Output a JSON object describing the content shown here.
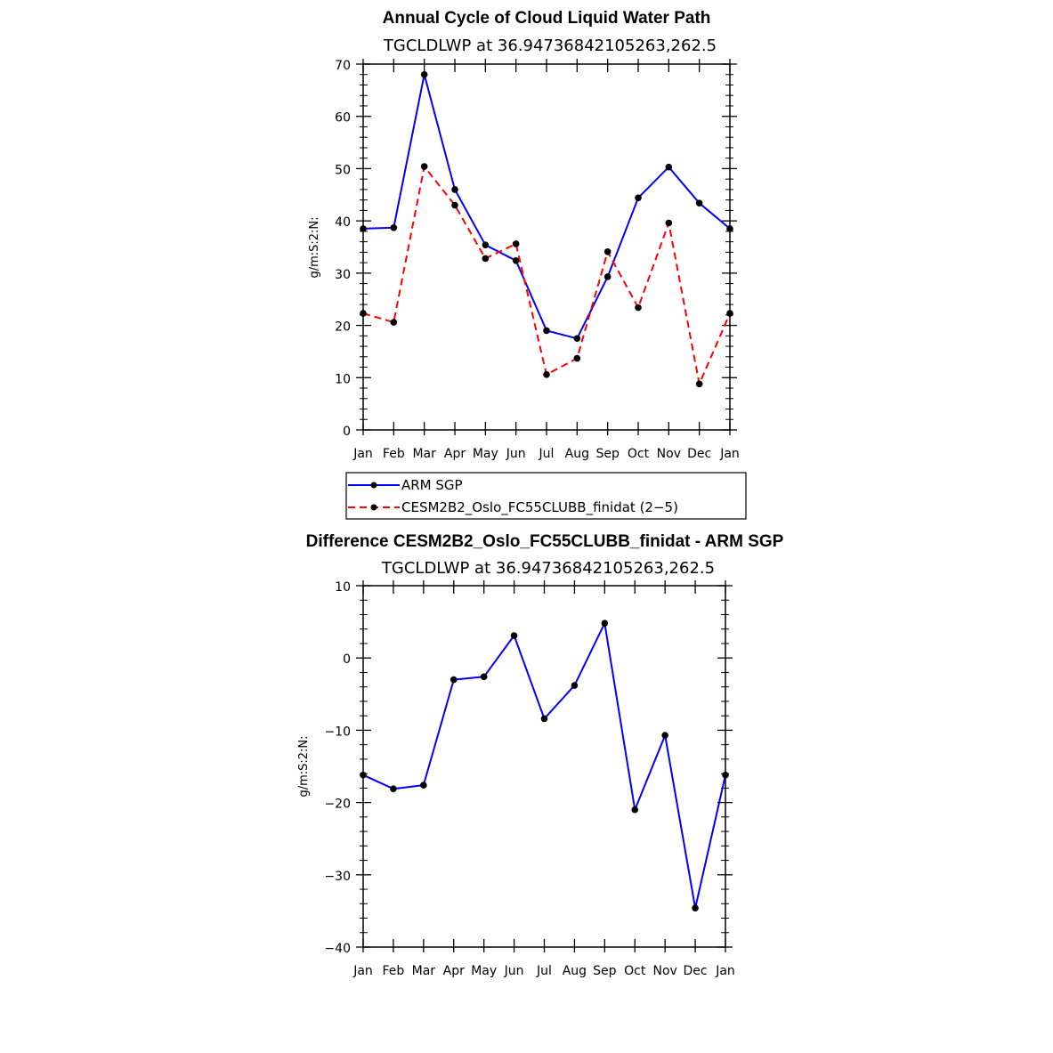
{
  "chart_data": [
    {
      "type": "line",
      "title": "Annual Cycle of Cloud Liquid Water Path",
      "subtitle": "TGCLDLWP  at  36.94736842105263,262.5",
      "ylabel": "g/m:S:2:N:",
      "categories": [
        "Jan",
        "Feb",
        "Mar",
        "Apr",
        "May",
        "Jun",
        "Jul",
        "Aug",
        "Sep",
        "Oct",
        "Nov",
        "Dec",
        "Jan"
      ],
      "ylim": [
        0,
        70
      ],
      "yticks": [
        0,
        10,
        20,
        30,
        40,
        50,
        60,
        70
      ],
      "series": [
        {
          "name": "ARM SGP",
          "color": "#0000ff",
          "dash": "solid",
          "values": [
            38.5,
            38.7,
            68.0,
            46.0,
            35.4,
            32.4,
            19.0,
            17.5,
            29.3,
            44.4,
            50.3,
            43.4,
            38.5
          ]
        },
        {
          "name": "CESM2B2_Oslo_FC55CLUBB_finidat (2−5)",
          "color": "#ff0000",
          "dash": "dashed",
          "values": [
            22.3,
            20.6,
            50.4,
            43.0,
            32.8,
            35.6,
            10.6,
            13.7,
            34.1,
            23.4,
            39.6,
            8.8,
            22.3
          ]
        }
      ],
      "legend": "below",
      "grid": false
    },
    {
      "type": "line",
      "title": "Difference CESM2B2_Oslo_FC55CLUBB_finidat - ARM SGP",
      "subtitle": "TGCLDLWP  at  36.94736842105263,262.5",
      "ylabel": "g/m:S:2:N:",
      "categories": [
        "Jan",
        "Feb",
        "Mar",
        "Apr",
        "May",
        "Jun",
        "Jul",
        "Aug",
        "Sep",
        "Oct",
        "Nov",
        "Dec",
        "Jan"
      ],
      "ylim": [
        -40,
        10
      ],
      "yticks": [
        -40,
        -30,
        -20,
        -10,
        0,
        10
      ],
      "ytick_labels": [
        "−40",
        "−30",
        "−20",
        "−10",
        "0",
        "10"
      ],
      "series": [
        {
          "color": "#0000ff",
          "dash": "solid",
          "values": [
            -16.2,
            -18.1,
            -17.6,
            -3.0,
            -2.6,
            3.1,
            -8.4,
            -3.8,
            4.8,
            -21.0,
            -10.7,
            -34.6,
            -16.2
          ]
        }
      ],
      "grid": false
    }
  ]
}
